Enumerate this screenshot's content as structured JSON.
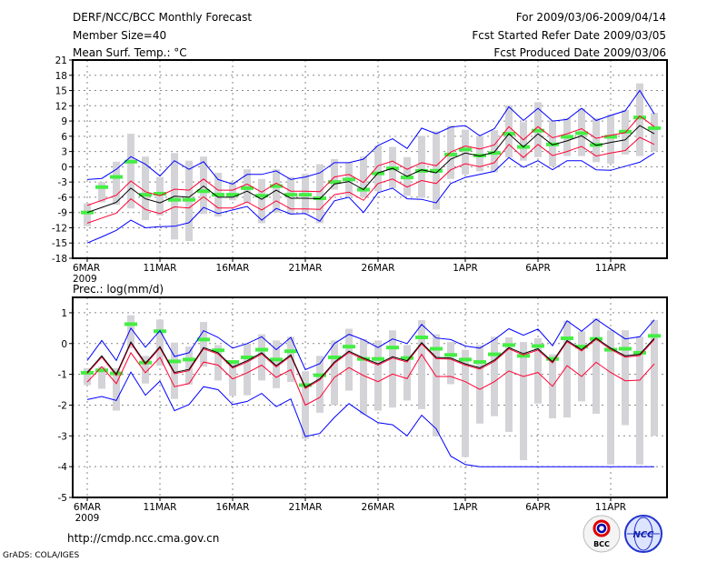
{
  "header": {
    "title": "DERF/NCC/BCC Monthly Forecast",
    "member_size": "Member Size=40",
    "variable": "Mean Surf. Temp.: °C",
    "period": "For 2009/03/06-2009/04/14",
    "start_date": "Fcst Started Refer Date 2009/03/05",
    "produced_date": "Fcst Produced Date 2009/03/06"
  },
  "footer": {
    "url": "http://cmdp.ncc.cma.gov.cn",
    "grads": "GrADS: COLA/IGES",
    "logo_bcc": "BCC",
    "logo_ncc": "NCC"
  },
  "colors": {
    "mean": "#000000",
    "spread": "#ff0033",
    "extreme": "#0000ff",
    "observed": "#44ee44",
    "range": "#d4d4d8",
    "grid": "#888888"
  },
  "chart_data": [
    {
      "type": "line",
      "title": "Mean Surf. Temp.: °C",
      "ylabel": "°C",
      "ylim": [
        -18,
        21
      ],
      "yticks": [
        21,
        18,
        15,
        12,
        9,
        6,
        3,
        0,
        -3,
        -6,
        -9,
        -12,
        -15,
        -18
      ],
      "ytick_labels": [
        "21",
        "18",
        "15",
        "12",
        "9",
        "6",
        "3",
        "0",
        "-3",
        "-6",
        "-9",
        "-12",
        "-15",
        "-18"
      ],
      "x_days": 40,
      "x_start": "6MAR 2009",
      "xtick_days": [
        0,
        5,
        10,
        15,
        20,
        26,
        31,
        36
      ],
      "xtick_labels": [
        "6MAR",
        "11MAR",
        "16MAR",
        "21MAR",
        "26MAR",
        "1APR",
        "6APR",
        "11APR"
      ],
      "year_label": "2009",
      "grid": true,
      "ensemble_mean": [
        -9,
        -8,
        -7,
        -4.2,
        -6.3,
        -7.1,
        -5.8,
        -6,
        -3.8,
        -6,
        -6,
        -4.8,
        -6.4,
        -4.6,
        -6.2,
        -6.2,
        -6.3,
        -3.4,
        -2.9,
        -4.5,
        -1.2,
        -0.3,
        -1.9,
        -0.6,
        -1.2,
        1.5,
        2.7,
        2.1,
        2.9,
        6.5,
        3.9,
        6.5,
        4.3,
        5.1,
        6.1,
        4.2,
        4.8,
        5.3,
        8.1,
        6.5
      ],
      "spread_upper": [
        -7.6,
        -6.6,
        -5.6,
        -2.8,
        -4.9,
        -5.7,
        -4.4,
        -4.6,
        -2.4,
        -4.6,
        -4.6,
        -3.4,
        -5,
        -3.2,
        -4.8,
        -4.8,
        -4.9,
        -2,
        -1.5,
        -3.1,
        0.2,
        1.1,
        -0.5,
        0.8,
        0.2,
        2.9,
        4.1,
        3.5,
        4.3,
        7.9,
        5.3,
        7.9,
        5.7,
        6.5,
        7.5,
        5.6,
        6.2,
        6.7,
        10,
        7.9
      ],
      "spread_lower": [
        -11.1,
        -10.1,
        -9.1,
        -6.3,
        -8.4,
        -9.2,
        -7.9,
        -8.1,
        -5.9,
        -8.1,
        -8.1,
        -6.9,
        -8.5,
        -6.7,
        -8.3,
        -8.3,
        -8.4,
        -5.5,
        -5,
        -6.6,
        -3.3,
        -2.4,
        -4,
        -2.7,
        -3.3,
        -0.6,
        0.6,
        0,
        0.8,
        4.4,
        1.8,
        4.4,
        2.2,
        3,
        4,
        2.1,
        2.7,
        3.2,
        5.8,
        4.4
      ],
      "ens_max": [
        -2.5,
        -2.3,
        -0.5,
        2,
        0.5,
        -1.8,
        1.2,
        -0.5,
        1,
        -2.5,
        -3.4,
        -1.5,
        -1.5,
        -0.8,
        -2.5,
        -2,
        -1.2,
        0.8,
        0.8,
        1.5,
        4.2,
        5.5,
        3.6,
        7.6,
        6.5,
        7.8,
        8.1,
        6.1,
        7.5,
        11.8,
        9.1,
        11.5,
        9,
        9.3,
        11.5,
        9.1,
        10.1,
        11,
        15,
        10.4
      ],
      "ens_min": [
        -15,
        -13.8,
        -12.5,
        -10.5,
        -12,
        -11.8,
        -11.7,
        -11,
        -8,
        -9.2,
        -8.5,
        -7.8,
        -10.5,
        -8.2,
        -9.3,
        -9.2,
        -10.7,
        -6.7,
        -6,
        -9,
        -5.1,
        -4.2,
        -6.3,
        -6.4,
        -7.1,
        -3.3,
        -2.1,
        -1.5,
        -0.9,
        1.8,
        -0.1,
        1.2,
        -0.6,
        1.2,
        1.2,
        -0.6,
        -0.7,
        0.1,
        0.9,
        2.7
      ],
      "observed": [
        -9,
        -4,
        -2,
        1,
        -5.5,
        -5.3,
        -6.5,
        -6.5,
        -4.8,
        -5.5,
        -5.5,
        -4.2,
        -5.7,
        -3.8,
        -5.5,
        -5.5,
        -6.2,
        -3,
        -2.5,
        -4.5,
        -1.3,
        -0.3,
        -2.1,
        -0.8,
        -0.8,
        2.4,
        3.4,
        2.2,
        2.7,
        6.5,
        3.9,
        7.1,
        4.4,
        5.9,
        6.6,
        4.3,
        5.9,
        6.9,
        9.7,
        7.6
      ],
      "range_low": [
        -11.7,
        -7,
        -7.5,
        -8.2,
        -10.5,
        -9.6,
        -14.3,
        -14.6,
        -9.3,
        -9.8,
        -6.6,
        -7.1,
        -11.1,
        -9,
        -9.4,
        -9,
        -11.1,
        -4.5,
        -5.8,
        -6,
        -4.8,
        -4.2,
        -5.7,
        -6.1,
        -8.4,
        -2.4,
        -1.5,
        -0.9,
        -1.1,
        1.8,
        1.2,
        1.9,
        0.1,
        2.1,
        2.1,
        0.9,
        0.6,
        2.4,
        2.1,
        3
      ],
      "range_high": [
        -7.2,
        -3,
        1,
        6.5,
        2,
        -2,
        2.7,
        1.2,
        2,
        -1.2,
        -3,
        -0.5,
        -2.4,
        -0.5,
        -2,
        -1.4,
        0.5,
        1.5,
        0.8,
        2,
        4.2,
        3.9,
        1.9,
        6.1,
        7,
        8.1,
        7.3,
        6.1,
        7.2,
        12.1,
        8.8,
        12.7,
        9.1,
        9.6,
        11.5,
        9.6,
        10.3,
        11.2,
        16.4,
        10.6
      ]
    },
    {
      "type": "line",
      "title": "Prec.: log(mm/d)",
      "ylabel": "log(mm/d)",
      "ylim": [
        -5,
        1.5
      ],
      "yticks": [
        1,
        0,
        -1,
        -2,
        -3,
        -4,
        -5
      ],
      "ytick_labels": [
        "1",
        "0",
        "-1",
        "-2",
        "-3",
        "-4",
        "-5"
      ],
      "x_days": 40,
      "xtick_days": [
        0,
        5,
        10,
        15,
        20,
        26,
        31,
        36
      ],
      "xtick_labels": [
        "6MAR",
        "11MAR",
        "16MAR",
        "21MAR",
        "26MAR",
        "1APR",
        "6APR",
        "11APR"
      ],
      "year_label": "2009",
      "grid": true,
      "ensemble_mean": [
        -0.94,
        -0.4,
        -1,
        0.05,
        -0.64,
        -0.1,
        -0.94,
        -0.84,
        -0.13,
        -0.3,
        -0.76,
        -0.56,
        -0.3,
        -0.72,
        -0.37,
        -1.42,
        -1.14,
        -0.6,
        -0.25,
        -0.47,
        -0.66,
        -0.43,
        -0.56,
        0.03,
        -0.45,
        -0.47,
        -0.66,
        -0.79,
        -0.54,
        -0.13,
        -0.33,
        -0.17,
        -0.59,
        0.1,
        -0.2,
        0.18,
        -0.15,
        -0.4,
        -0.35,
        0.17
      ],
      "spread_upper": [
        -0.97,
        -0.44,
        -1.04,
        0.01,
        -0.68,
        -0.14,
        -0.98,
        -0.88,
        -0.17,
        -0.34,
        -0.8,
        -0.6,
        -0.34,
        -0.76,
        -0.41,
        -1.46,
        -1.18,
        -0.64,
        -0.29,
        -0.51,
        -0.7,
        -0.47,
        -0.6,
        -0.01,
        -0.49,
        -0.51,
        -0.7,
        -0.83,
        -0.58,
        -0.17,
        -0.37,
        -0.21,
        -0.63,
        0.06,
        -0.24,
        0.14,
        -0.19,
        -0.44,
        -0.39,
        0.13
      ],
      "spread_lower": [
        -1.25,
        -0.75,
        -1.3,
        -0.3,
        -0.95,
        -0.45,
        -1.4,
        -1.3,
        -0.6,
        -0.7,
        -1.15,
        -0.95,
        -0.7,
        -1.1,
        -0.85,
        -2,
        -1.75,
        -1.1,
        -0.78,
        -1.04,
        -1.24,
        -0.99,
        -1.14,
        -0.35,
        -1.07,
        -1.07,
        -1.24,
        -1.49,
        -1.24,
        -0.89,
        -1.07,
        -0.94,
        -1.39,
        -0.72,
        -1.07,
        -0.61,
        -0.94,
        -1.21,
        -1.19,
        -0.66
      ],
      "ens_max": [
        -0.55,
        0.1,
        -0.55,
        0.5,
        -0.12,
        0.42,
        -0.42,
        -0.3,
        0.42,
        0.2,
        -0.15,
        0,
        0.22,
        -0.2,
        0.2,
        -0.85,
        -0.65,
        0,
        0.3,
        0.12,
        -0.13,
        0.15,
        0,
        0.62,
        0.18,
        0.13,
        -0.08,
        -0.15,
        0.13,
        0.48,
        0.27,
        0.47,
        -0.07,
        0.74,
        0.4,
        0.79,
        0.47,
        0.15,
        0.22,
        0.77
      ],
      "ens_min": [
        -1.82,
        -1.72,
        -1.85,
        -0.93,
        -1.68,
        -1.22,
        -2.18,
        -1.98,
        -1.4,
        -1.5,
        -1.98,
        -1.88,
        -1.62,
        -2.05,
        -1.8,
        -3.02,
        -2.92,
        -2.4,
        -1.95,
        -2.28,
        -2.57,
        -2.64,
        -3,
        -2.33,
        -2.77,
        -3.66,
        -3.93,
        -4,
        -4,
        -4,
        -4,
        -4,
        -4,
        -4,
        -4,
        -4,
        -4,
        -4,
        -4,
        -4
      ],
      "observed": [
        -0.95,
        -0.87,
        -0.97,
        0.63,
        -0.62,
        0.4,
        -0.58,
        -0.52,
        0.13,
        -0.22,
        -0.6,
        -0.45,
        -0.2,
        -0.52,
        -0.25,
        -1.35,
        -1.03,
        -0.45,
        -0.1,
        -0.5,
        -0.5,
        -0.13,
        -0.47,
        0.2,
        -0.17,
        -0.37,
        -0.52,
        -0.6,
        -0.35,
        -0.05,
        -0.4,
        -0.08,
        -0.5,
        0.17,
        -0.1,
        0.15,
        -0.2,
        -0.17,
        -0.3,
        0.25
      ],
      "range_low": [
        -1.35,
        -1.47,
        -2.18,
        -0.15,
        -1.3,
        -0.72,
        -1.8,
        -1.33,
        -0.75,
        -1.2,
        -1.7,
        -1.68,
        -1.2,
        -1.45,
        -1.25,
        -3.1,
        -2.25,
        -2,
        -1.53,
        -2.3,
        -2.18,
        -2.08,
        -1.85,
        -2.13,
        -3.02,
        -1.32,
        -3.69,
        -2.6,
        -2.36,
        -2.87,
        -3.79,
        -1.95,
        -2.43,
        -2.4,
        -1.88,
        -2.28,
        -3.93,
        -2.65,
        -3.93,
        -3
      ],
      "range_high": [
        -0.8,
        -0.75,
        -0.8,
        0.92,
        -0.4,
        0.78,
        0.03,
        -0.1,
        0.7,
        -0.05,
        -0.55,
        0,
        0.3,
        0.1,
        0.22,
        -0.9,
        -0.4,
        0.1,
        0.48,
        0.15,
        0.1,
        0.43,
        -0.05,
        0.76,
        0.3,
        0.05,
        -0.2,
        -0.05,
        0.22,
        0.2,
        0.05,
        0.17,
        -0.35,
        0.74,
        0.4,
        0.82,
        0.43,
        0.43,
        0.23,
        0.76
      ]
    }
  ]
}
